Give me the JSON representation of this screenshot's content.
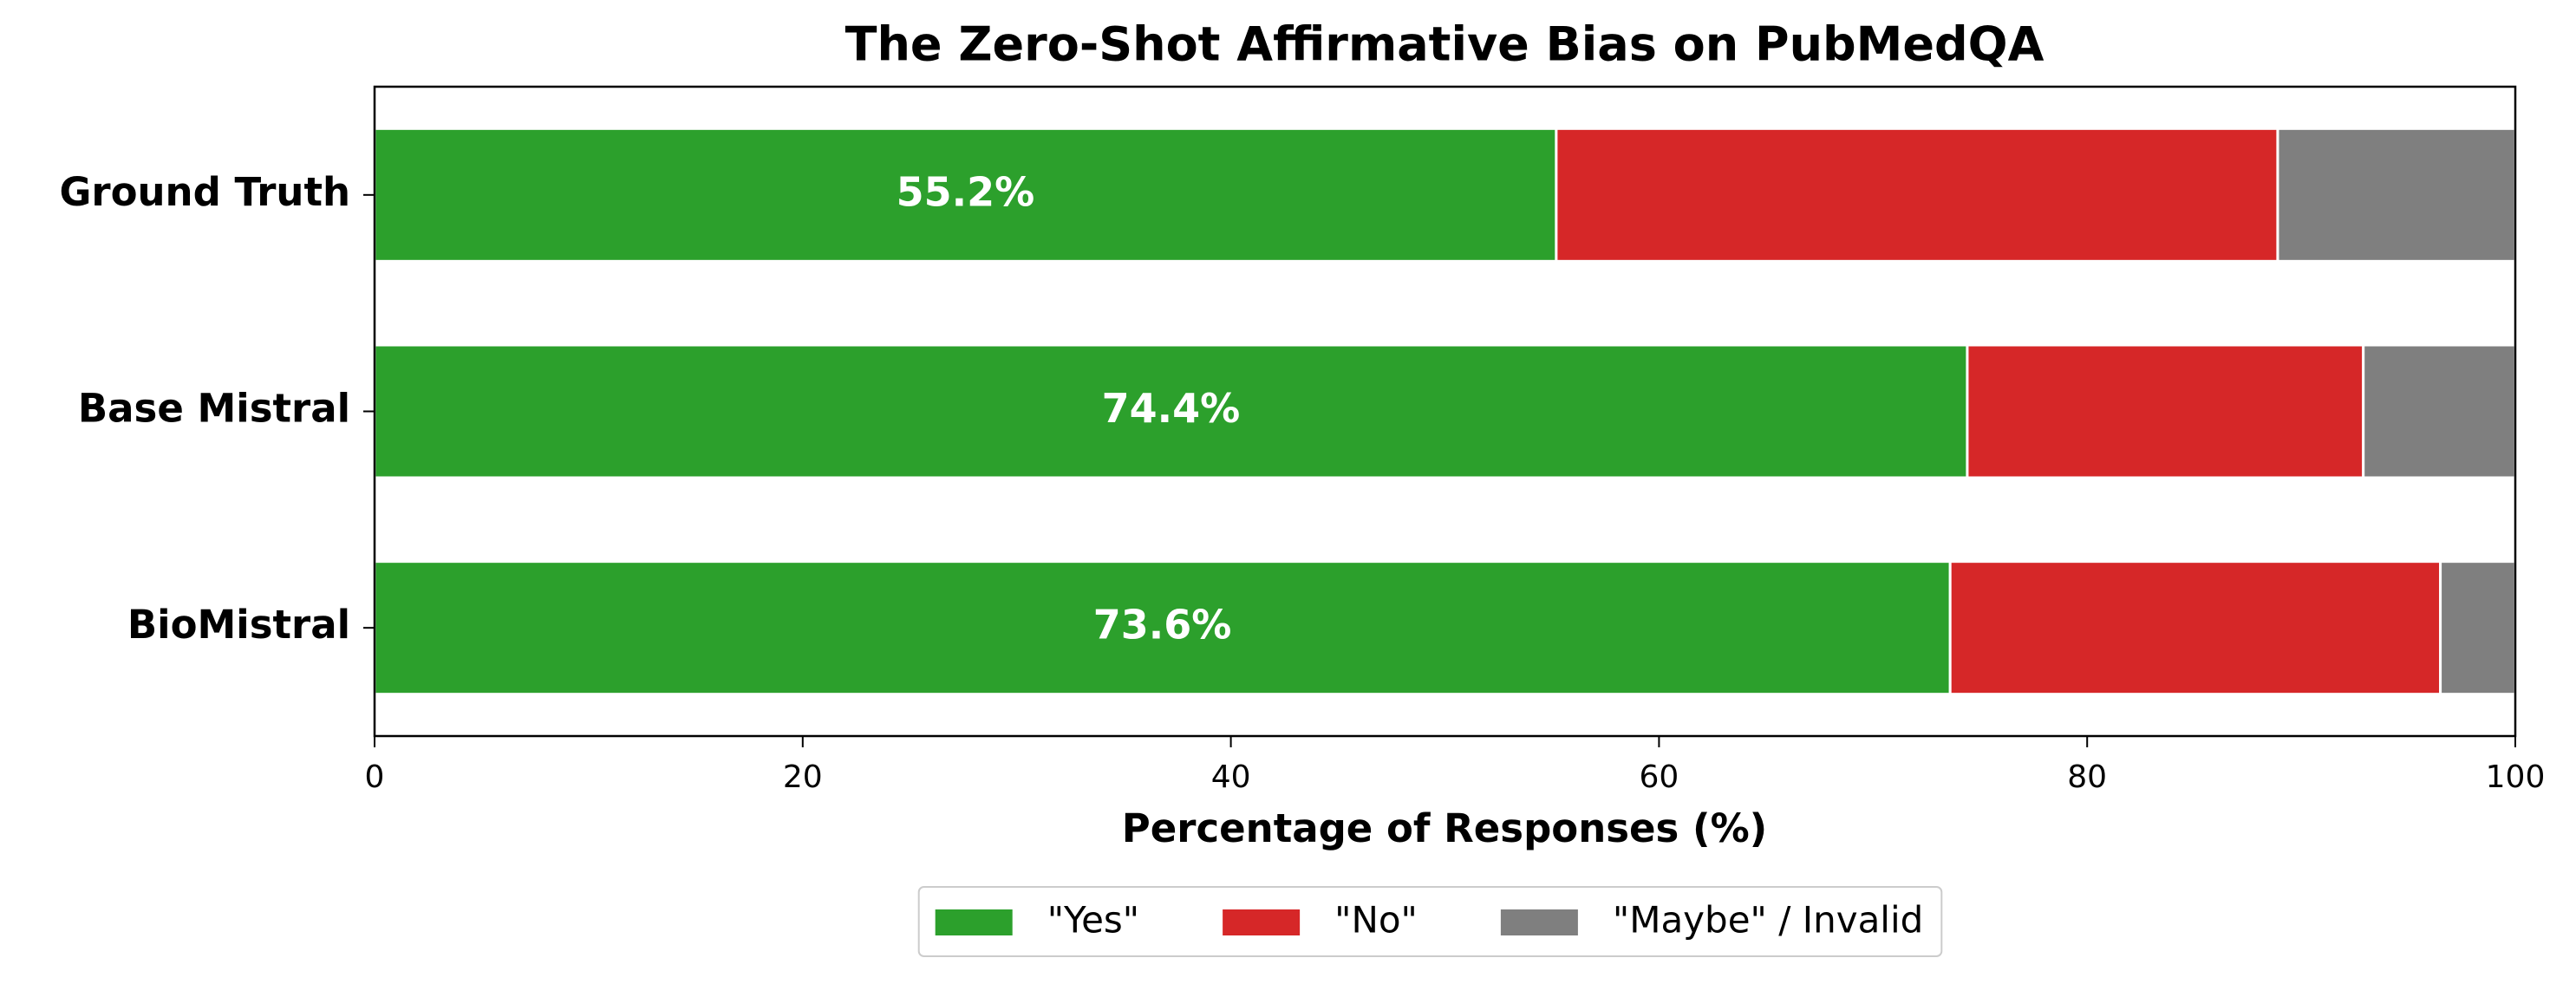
{
  "chart_data": {
    "type": "stacked_barh",
    "title": "The Zero-Shot Affirmative Bias on PubMedQA",
    "xlabel": "Percentage of Responses (%)",
    "categories": [
      "Ground Truth",
      "Base Mistral",
      "BioMistral"
    ],
    "series": [
      {
        "name": "\"Yes\"",
        "color": "#2ca02c",
        "values": [
          55.2,
          74.4,
          73.6
        ],
        "value_labels": [
          "55.2%",
          "74.4%",
          "73.6%"
        ]
      },
      {
        "name": "\"No\"",
        "color": "#d62728",
        "values": [
          33.7,
          18.5,
          22.9
        ]
      },
      {
        "name": "\"Maybe\" / Invalid",
        "color": "#7f7f7f",
        "values": [
          11.1,
          7.1,
          3.5
        ]
      }
    ],
    "xlim": [
      0,
      100
    ],
    "xticks": [
      0,
      20,
      40,
      60,
      80,
      100
    ],
    "legend": "bottom"
  }
}
